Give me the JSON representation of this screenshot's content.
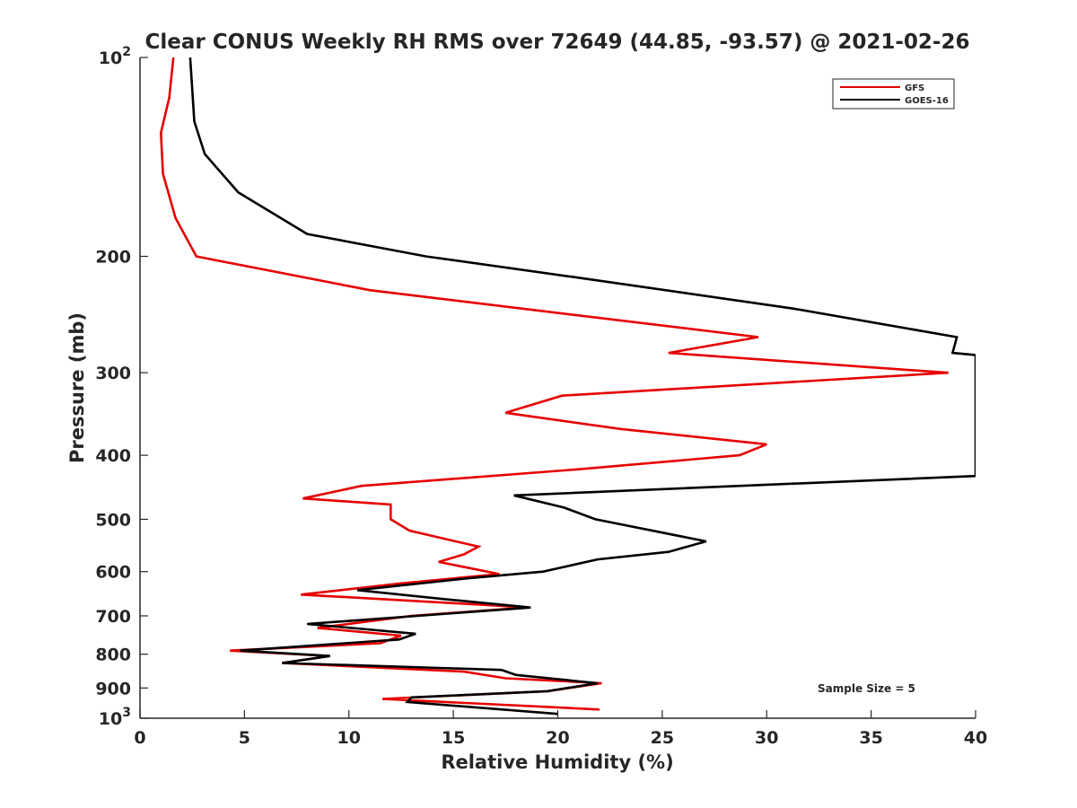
{
  "chart_data": {
    "type": "line",
    "title": "Clear CONUS Weekly RH RMS over 72649 (44.85, -93.57) @ 2021-02-26",
    "xlabel": "Relative Humidity (%)",
    "ylabel": "Pressure (mb)",
    "xlim": [
      0,
      40
    ],
    "ylim": [
      100,
      1000
    ],
    "y_scale": "log",
    "y_reversed": true,
    "grid": false,
    "legend_position": "top-right",
    "x_ticks": [
      0,
      5,
      10,
      15,
      20,
      25,
      30,
      35,
      40
    ],
    "x_tick_labels": [
      "0",
      "5",
      "10",
      "15",
      "20",
      "25",
      "30",
      "35",
      "40"
    ],
    "y_ticks": [
      100,
      200,
      300,
      400,
      500,
      600,
      700,
      800,
      900,
      1000
    ],
    "y_tick_labels": [
      {
        "base": "10",
        "exp": "2"
      },
      {
        "base": "200",
        "exp": ""
      },
      {
        "base": "300",
        "exp": ""
      },
      {
        "base": "400",
        "exp": ""
      },
      {
        "base": "500",
        "exp": ""
      },
      {
        "base": "600",
        "exp": ""
      },
      {
        "base": "700",
        "exp": ""
      },
      {
        "base": "800",
        "exp": ""
      },
      {
        "base": "900",
        "exp": ""
      },
      {
        "base": "10",
        "exp": "3"
      }
    ],
    "annotation": "Sample Size = 5",
    "series": [
      {
        "name": "GFS",
        "color": "#e60000",
        "points": [
          [
            1.6,
            100
          ],
          [
            1.4,
            115
          ],
          [
            1.0,
            130
          ],
          [
            1.1,
            150
          ],
          [
            1.7,
            175
          ],
          [
            2.7,
            200
          ],
          [
            11,
            225
          ],
          [
            29.6,
            265
          ],
          [
            25.3,
            280
          ],
          [
            38.7,
            300
          ],
          [
            20.2,
            325
          ],
          [
            17.5,
            345
          ],
          [
            23,
            365
          ],
          [
            30,
            385
          ],
          [
            28.7,
            400
          ],
          [
            21,
            420
          ],
          [
            10.6,
            445
          ],
          [
            7.8,
            465
          ],
          [
            12.0,
            475
          ],
          [
            12.0,
            500
          ],
          [
            12.9,
            520
          ],
          [
            16.2,
            550
          ],
          [
            15.5,
            565
          ],
          [
            14.3,
            580
          ],
          [
            17.2,
            605
          ],
          [
            12.5,
            625
          ],
          [
            7.7,
            650
          ],
          [
            17.0,
            675
          ],
          [
            18.5,
            680
          ],
          [
            13,
            700
          ],
          [
            8.5,
            730
          ],
          [
            12.5,
            750
          ],
          [
            11.5,
            770
          ],
          [
            4.3,
            790
          ],
          [
            9.1,
            805
          ],
          [
            6.8,
            825
          ],
          [
            15.5,
            850
          ],
          [
            17.5,
            870
          ],
          [
            22.1,
            885
          ],
          [
            19.5,
            910
          ],
          [
            11.6,
            935
          ],
          [
            22.0,
            970
          ]
        ]
      },
      {
        "name": "GOES-16",
        "color": "#000000",
        "points": [
          [
            2.4,
            100
          ],
          [
            2.6,
            125
          ],
          [
            3.1,
            140
          ],
          [
            4.7,
            160
          ],
          [
            8.0,
            185
          ],
          [
            13.7,
            200
          ],
          [
            20.8,
            215
          ],
          [
            31.3,
            240
          ],
          [
            39.1,
            265
          ],
          [
            38.9,
            280
          ],
          [
            40,
            282
          ],
          [
            40,
            430
          ],
          [
            17.9,
            460
          ],
          [
            20.3,
            480
          ],
          [
            21.8,
            500
          ],
          [
            27.1,
            540
          ],
          [
            25.3,
            560
          ],
          [
            21.9,
            575
          ],
          [
            19.3,
            600
          ],
          [
            15.5,
            615
          ],
          [
            10.4,
            640
          ],
          [
            14.5,
            660
          ],
          [
            18.7,
            680
          ],
          [
            8.0,
            720
          ],
          [
            13.2,
            745
          ],
          [
            12.4,
            760
          ],
          [
            4.8,
            790
          ],
          [
            9.1,
            805
          ],
          [
            6.8,
            825
          ],
          [
            17.3,
            845
          ],
          [
            18.0,
            860
          ],
          [
            21.9,
            885
          ],
          [
            19.5,
            910
          ],
          [
            13.0,
            930
          ],
          [
            12.8,
            945
          ],
          [
            20.0,
            985
          ]
        ]
      }
    ]
  }
}
